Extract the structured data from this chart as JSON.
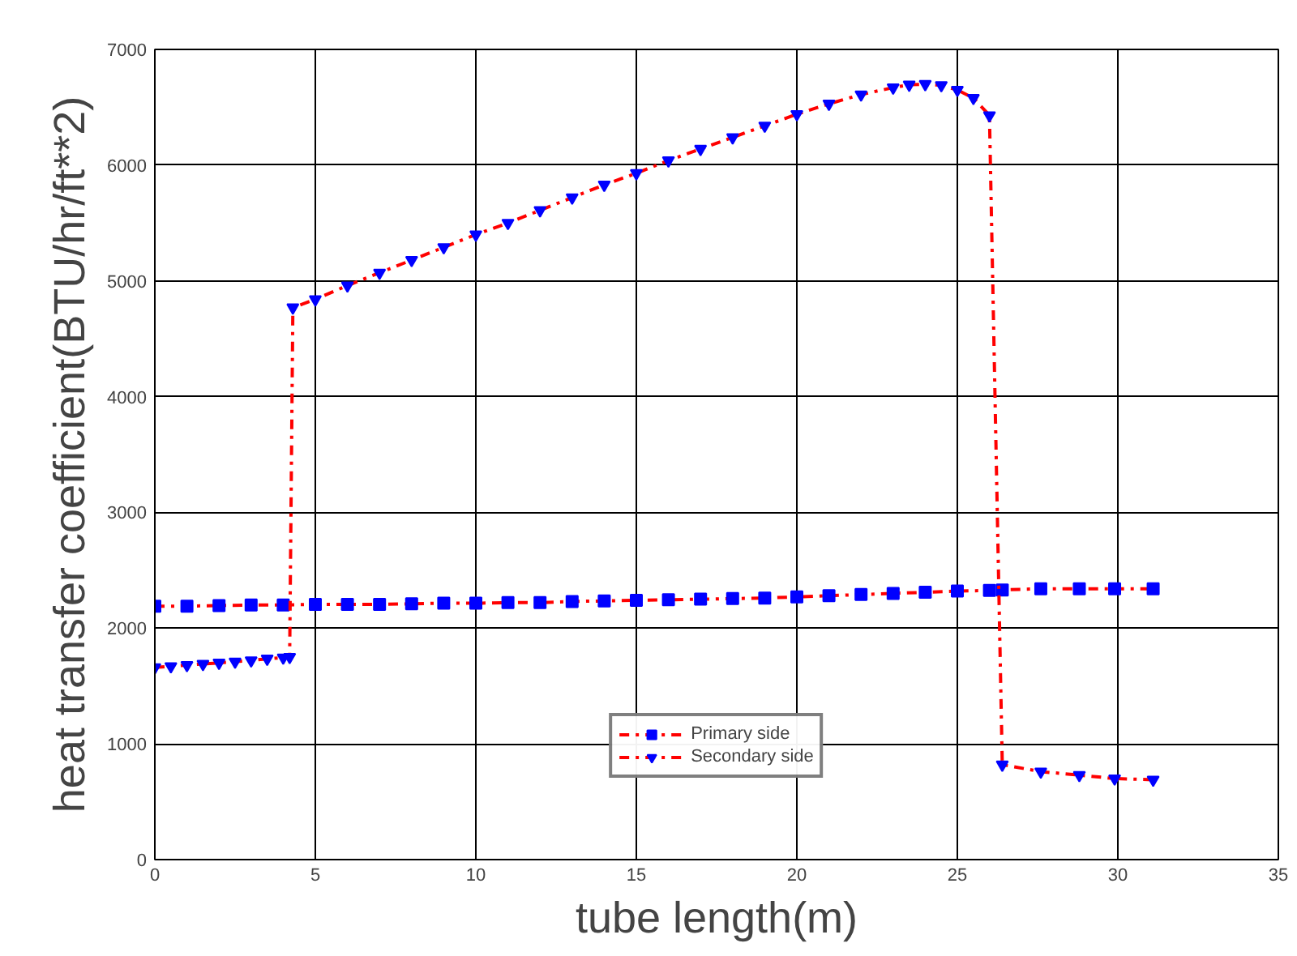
{
  "chart_data": {
    "type": "line",
    "xlabel": "tube length(m)",
    "ylabel": "heat transfer coefficient(BTU/hr/ft**2)",
    "xlim": [
      0,
      35
    ],
    "xticks": [
      0,
      5,
      10,
      15,
      20,
      25,
      30,
      35
    ],
    "ylim": [
      0,
      7000
    ],
    "yticks": [
      0,
      1000,
      2000,
      3000,
      4000,
      5000,
      6000,
      7000
    ],
    "grid": true,
    "legend": "bottom",
    "line_style": "dashed",
    "series": [
      {
        "name": "Primary side",
        "color": "#0000ff",
        "marker": "square",
        "x": [
          0,
          1,
          2,
          3,
          4,
          5,
          6,
          7,
          8,
          9,
          10,
          11,
          12,
          13,
          14,
          15,
          16,
          17,
          18,
          19,
          20,
          21,
          22,
          23,
          24,
          25,
          26,
          26.4,
          27.6,
          28.8,
          29.9,
          31.1
        ],
        "values": [
          2190,
          2190,
          2195,
          2200,
          2200,
          2205,
          2205,
          2205,
          2210,
          2215,
          2215,
          2220,
          2220,
          2230,
          2235,
          2240,
          2245,
          2250,
          2255,
          2260,
          2270,
          2280,
          2290,
          2300,
          2310,
          2320,
          2325,
          2330,
          2340,
          2340,
          2340,
          2340
        ]
      },
      {
        "name": "Secondary side",
        "color": "#0000ff",
        "marker": "triangle",
        "x": [
          0,
          0.5,
          1,
          1.5,
          2,
          2.5,
          3,
          3.5,
          4,
          4.2,
          4.3,
          5,
          6,
          7,
          8,
          9,
          10,
          11,
          12,
          13,
          14,
          15,
          16,
          17,
          18,
          19,
          20,
          21,
          22,
          23,
          23.5,
          24,
          24.5,
          25,
          25.5,
          26,
          26.4,
          27.6,
          28.8,
          29.9,
          31.1
        ],
        "values": [
          1660,
          1670,
          1680,
          1690,
          1700,
          1710,
          1720,
          1735,
          1745,
          1750,
          4770,
          4840,
          4960,
          5070,
          5180,
          5290,
          5400,
          5500,
          5610,
          5720,
          5830,
          5930,
          6040,
          6140,
          6240,
          6340,
          6440,
          6530,
          6610,
          6670,
          6695,
          6700,
          6690,
          6650,
          6580,
          6430,
          820,
          760,
          730,
          700,
          690
        ]
      }
    ]
  }
}
